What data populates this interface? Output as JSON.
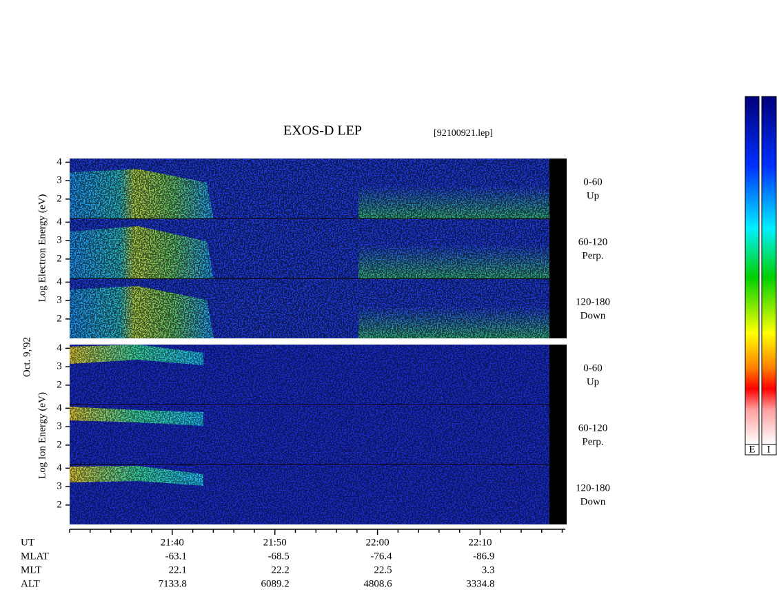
{
  "chart_data": {
    "type": "spectrogram",
    "title": "EXOS-D LEP",
    "subtitle": "[92100921.lep]",
    "date_label": "Oct. 9,'92",
    "electron_axis_label": "Log Electron Energy (eV)",
    "ion_axis_label": "Log Ion Energy (eV)",
    "panels": [
      {
        "label": [
          "0-60",
          "Up"
        ]
      },
      {
        "label": [
          "60-120",
          "Perp."
        ]
      },
      {
        "label": [
          "120-180",
          "Down"
        ]
      },
      {
        "label": [
          "0-60",
          "Up"
        ]
      },
      {
        "label": [
          "60-120",
          "Perp."
        ]
      },
      {
        "label": [
          "120-180",
          "Down"
        ]
      }
    ],
    "ylim": [
      0.95,
      4.2
    ],
    "yticks": [
      2,
      3,
      4
    ],
    "xlim": [
      1290,
      1338.3
    ],
    "xticks": [
      {
        "value": 1300,
        "label": "21:40"
      },
      {
        "value": 1310,
        "label": "21:50"
      },
      {
        "value": 1320,
        "label": "22:00"
      },
      {
        "value": 1330,
        "label": "22:10"
      }
    ],
    "minor_xticks": [
      1290,
      1292,
      1294,
      1296,
      1298,
      1302,
      1304,
      1306,
      1308,
      1312,
      1314,
      1316,
      1318,
      1322,
      1324,
      1326,
      1328,
      1332,
      1334,
      1336,
      1338
    ],
    "ephemeris": {
      "labels": [
        "UT",
        "MLAT",
        "MLT",
        "ALT"
      ],
      "rows": [
        [
          -63.1,
          -68.5,
          -76.4,
          -86.9
        ],
        [
          22.1,
          22.2,
          22.5,
          3.3
        ],
        [
          7133.8,
          6089.2,
          4808.6,
          3334.8
        ]
      ]
    },
    "colorbar_labels": [
      "E",
      "I"
    ]
  }
}
